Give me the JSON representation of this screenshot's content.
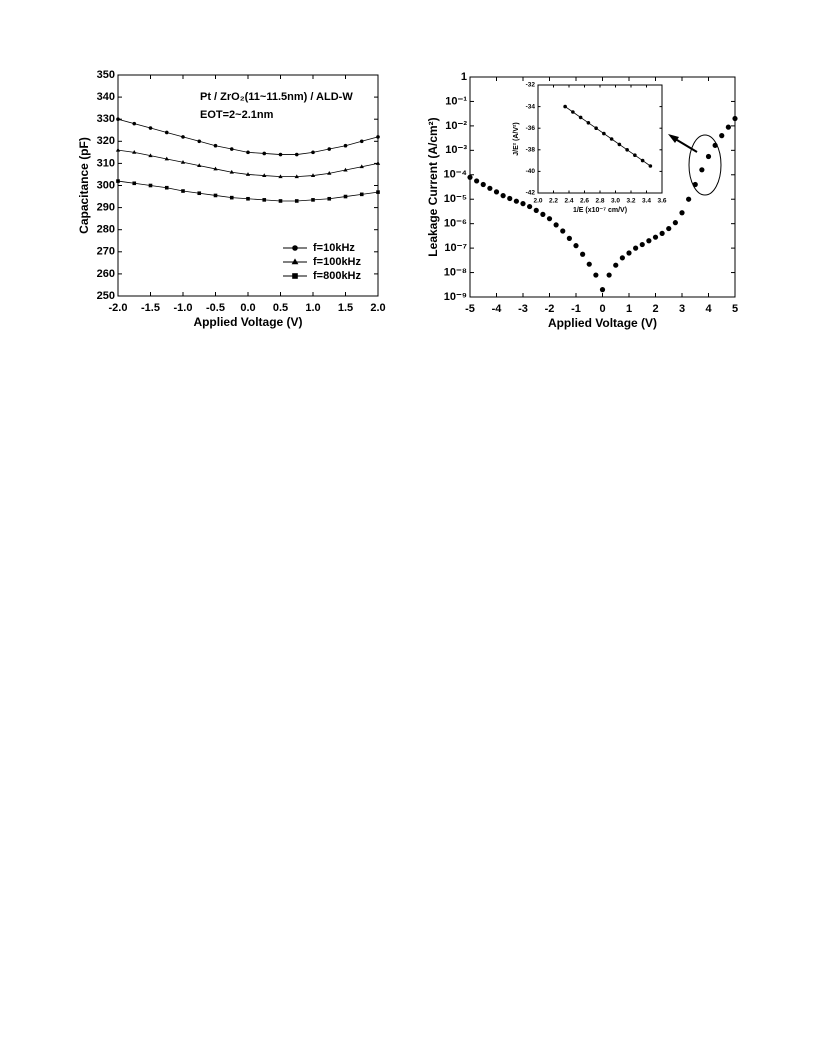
{
  "chart_data": [
    {
      "type": "line",
      "xlabel": "Applied Voltage (V)",
      "ylabel": "Capacitance (pF)",
      "annotations": [
        "Pt / ZrO₂(11~11.5nm) / ALD-W",
        "EOT=2~2.1nm"
      ],
      "x": [
        -2,
        -1.75,
        -1.5,
        -1.25,
        -1,
        -0.75,
        -0.5,
        -0.25,
        0,
        0.25,
        0.5,
        0.75,
        1,
        1.25,
        1.5,
        1.75,
        2
      ],
      "series": [
        {
          "name": "f=10kHz",
          "color": "#000",
          "marker": "circle",
          "values": [
            330,
            328,
            326,
            324,
            322,
            320,
            318,
            316.5,
            315,
            314.5,
            314,
            314,
            315,
            316.5,
            318,
            320,
            322
          ]
        },
        {
          "name": "f=100kHz",
          "color": "#000",
          "marker": "triangle",
          "values": [
            316,
            315,
            313.5,
            312,
            310.5,
            309,
            307.5,
            306,
            305,
            304.5,
            304,
            304,
            304.5,
            305.5,
            307,
            308.5,
            310
          ]
        },
        {
          "name": "f=800kHz",
          "color": "#000",
          "marker": "square",
          "values": [
            302,
            301,
            300,
            299,
            297.5,
            296.5,
            295.5,
            294.5,
            294,
            293.5,
            293,
            293,
            293.5,
            294,
            295,
            296,
            297
          ]
        }
      ],
      "legend": "lower right",
      "xlim": [
        -2,
        2
      ],
      "xticks": [
        {
          "value": -2,
          "label": "-2.0"
        },
        -1.5,
        {
          "value": -1,
          "label": "-1.0"
        },
        -0.5,
        {
          "value": 0,
          "label": "0.0"
        },
        0.5,
        {
          "value": 1,
          "label": "1.0"
        },
        1.5,
        {
          "value": 2,
          "label": "2.0"
        }
      ],
      "ylim": [
        250,
        350
      ],
      "yticks": [
        250,
        260,
        270,
        280,
        290,
        300,
        310,
        320,
        330,
        340,
        350
      ]
    },
    {
      "type": "scatter",
      "xlabel": "Applied Voltage (V)",
      "ylabel": "Leakage Current (A/cm²)",
      "ylog": true,
      "color": "#000",
      "marker": "circle",
      "x": [
        -5,
        -4.75,
        -4.5,
        -4.25,
        -4,
        -3.75,
        -3.5,
        -3.25,
        -3,
        -2.75,
        -2.5,
        -2.25,
        -2,
        -1.75,
        -1.5,
        -1.25,
        -1,
        -0.75,
        -0.5,
        -0.25,
        0,
        0.25,
        0.5,
        0.75,
        1,
        1.25,
        1.5,
        1.75,
        2,
        2.25,
        2.5,
        2.75,
        3,
        3.25,
        3.5,
        3.75,
        4,
        4.25,
        4.5,
        4.75,
        5
      ],
      "values": [
        7.9e-05,
        5.6e-05,
        4e-05,
        2.8e-05,
        2e-05,
        1.4e-05,
        1.07e-05,
        8.3e-06,
        6.6e-06,
        5e-06,
        3.5e-06,
        2.4e-06,
        1.6e-06,
        8.9e-07,
        5e-07,
        2.5e-07,
        1.26e-07,
        5.6e-08,
        2.2e-08,
        7.9e-09,
        2e-09,
        7.9e-09,
        2e-08,
        4e-08,
        6.3e-08,
        1e-07,
        1.4e-07,
        2e-07,
        2.8e-07,
        4e-07,
        6.3e-07,
        1.1e-06,
        2.8e-06,
        1e-05,
        4e-05,
        0.00016,
        0.00056,
        0.0016,
        0.004,
        0.0089,
        0.02
      ],
      "xlim": [
        -5,
        5
      ],
      "xticks": [
        -5,
        -4,
        -3,
        -2,
        -1,
        0,
        1,
        2,
        3,
        4,
        5
      ],
      "ylim": [
        1e-09,
        1
      ],
      "yticks": [
        {
          "value": 1e-09,
          "label": "10⁻⁹"
        },
        {
          "value": 1e-08,
          "label": "10⁻⁸"
        },
        {
          "value": 1e-07,
          "label": "10⁻⁷"
        },
        {
          "value": 1e-06,
          "label": "10⁻⁶"
        },
        {
          "value": 1e-05,
          "label": "10⁻⁵"
        },
        {
          "value": 0.0001,
          "label": "10⁻⁴"
        },
        {
          "value": 0.001,
          "label": "10⁻³"
        },
        {
          "value": 0.01,
          "label": "10⁻²"
        },
        {
          "value": 0.1,
          "label": "10⁻¹"
        },
        1
      ]
    },
    {
      "type": "line",
      "xlabel": "1/E (x10⁻⁷ cm/V)",
      "ylabel": "J/E² (A/V²)",
      "color": "#000",
      "marker": "circle",
      "x": [
        2.35,
        2.45,
        2.55,
        2.65,
        2.75,
        2.85,
        2.95,
        3.05,
        3.15,
        3.25,
        3.35,
        3.45
      ],
      "values": [
        -34,
        -34.5,
        -35,
        -35.5,
        -36,
        -36.5,
        -37,
        -37.5,
        -38,
        -38.5,
        -39,
        -39.5
      ],
      "xlim": [
        2.0,
        3.6
      ],
      "xticks": [
        {
          "value": 2,
          "label": "2.0"
        },
        2.2,
        2.4,
        2.6,
        2.8,
        {
          "value": 3,
          "label": "3.0"
        },
        3.2,
        3.4,
        3.6
      ],
      "ylim": [
        -42,
        -32
      ],
      "yticks": [
        -42,
        -40,
        -38,
        -36,
        -34,
        -32
      ]
    }
  ]
}
